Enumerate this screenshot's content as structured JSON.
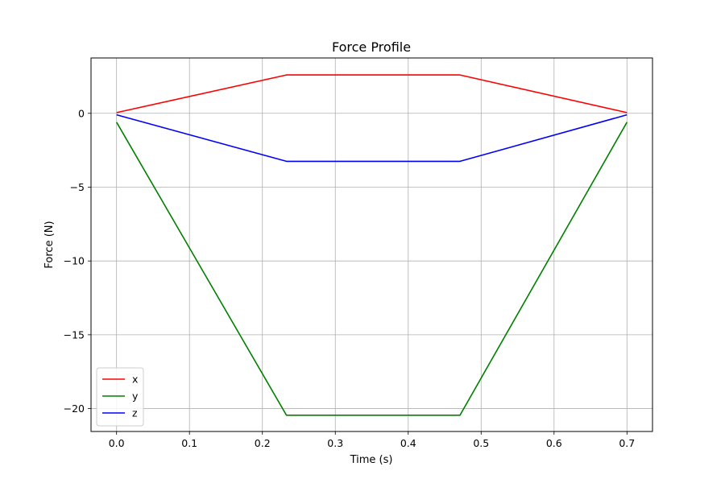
{
  "chart_data": {
    "type": "line",
    "title": "Force Profile",
    "xlabel": "Time (s)",
    "ylabel": "Force (N)",
    "xlim": [
      -0.035,
      0.735
    ],
    "ylim": [
      -21.55,
      3.75
    ],
    "xticks": [
      0.0,
      0.1,
      0.2,
      0.3,
      0.4,
      0.5,
      0.6,
      0.7
    ],
    "xtick_labels": [
      "0.0",
      "0.1",
      "0.2",
      "0.3",
      "0.4",
      "0.5",
      "0.6",
      "0.7"
    ],
    "yticks": [
      0,
      -5,
      -10,
      -15,
      -20
    ],
    "ytick_labels": [
      "0",
      "−5",
      "−10",
      "−15",
      "−20"
    ],
    "grid": true,
    "legend_position": "lower-left",
    "series": [
      {
        "name": "x",
        "color": "#ff0000",
        "x": [
          0.0,
          0.233,
          0.471,
          0.7
        ],
        "y": [
          0.05,
          2.6,
          2.6,
          0.05
        ]
      },
      {
        "name": "y",
        "color": "#008000",
        "x": [
          0.0,
          0.233,
          0.471,
          0.7
        ],
        "y": [
          -0.6,
          -20.45,
          -20.45,
          -0.6
        ]
      },
      {
        "name": "z",
        "color": "#0000ff",
        "x": [
          0.0,
          0.233,
          0.471,
          0.7
        ],
        "y": [
          -0.1,
          -3.25,
          -3.25,
          -0.1
        ]
      }
    ]
  }
}
